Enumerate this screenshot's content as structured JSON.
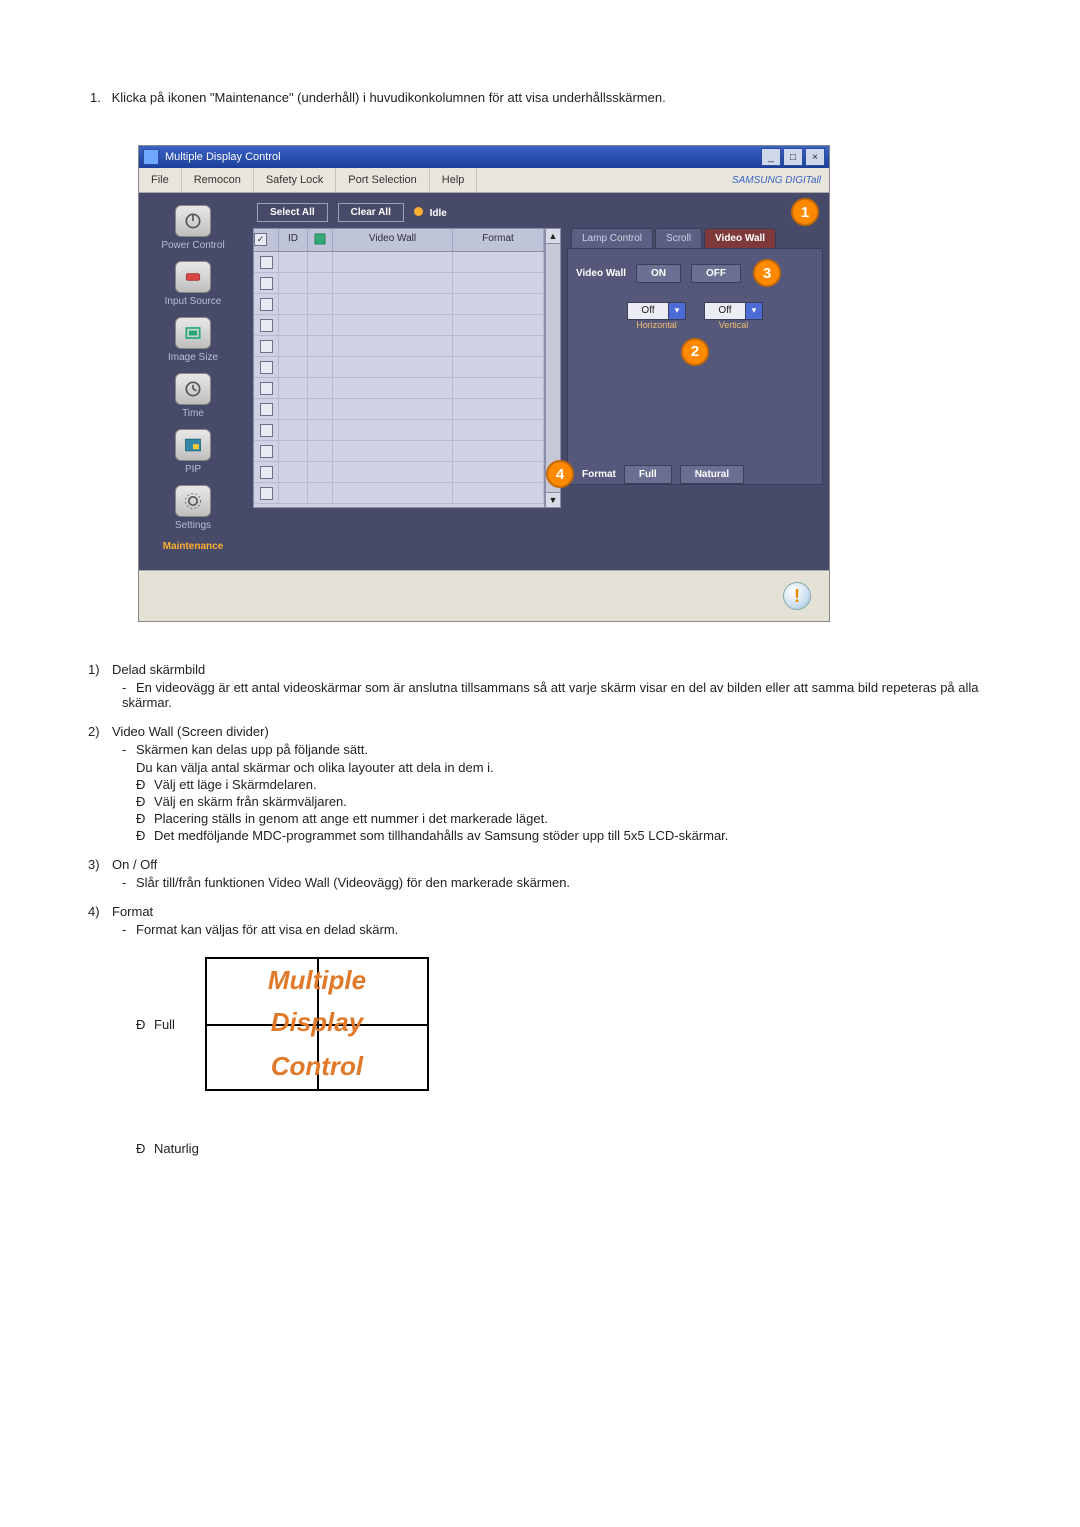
{
  "intro": {
    "num": "1.",
    "text": "Klicka på ikonen \"Maintenance\" (underhåll) i huvudikonkolumnen för att visa underhållsskärmen."
  },
  "window": {
    "title": "Multiple Display Control",
    "min": "_",
    "max": "□",
    "close": "×",
    "menu": [
      "File",
      "Remocon",
      "Safety Lock",
      "Port Selection",
      "Help"
    ],
    "brand": "SAMSUNG DIGITall"
  },
  "sidebar": [
    {
      "label": "Power Control"
    },
    {
      "label": "Input Source"
    },
    {
      "label": "Image Size"
    },
    {
      "label": "Time"
    },
    {
      "label": "PIP"
    },
    {
      "label": "Settings"
    },
    {
      "label": "Maintenance"
    }
  ],
  "toolbar": {
    "select_all": "Select All",
    "clear_all": "Clear All",
    "idle": "Idle"
  },
  "grid": {
    "h_id": "ID",
    "h_vw": "Video Wall",
    "h_fmt": "Format",
    "first_id": "ID",
    "row_count": 12
  },
  "rpanel": {
    "tabs": [
      "Lamp Control",
      "Scroll",
      "Video Wall"
    ],
    "vw_label": "Video Wall",
    "on": "ON",
    "off": "OFF",
    "dd_h": "Off",
    "dd_v": "Off",
    "lbl_h": "Horizontal",
    "lbl_v": "Vertical",
    "fmt_label": "Format",
    "full": "Full",
    "natural": "Natural"
  },
  "callouts": {
    "c1": "1",
    "c2": "2",
    "c3": "3",
    "c4": "4"
  },
  "body": {
    "s1_h": "Delad skärmbild",
    "s1_t": "En videovägg är ett antal videoskärmar som är anslutna tillsammans så att varje skärm visar en del av bilden eller att samma bild repeteras på alla skärmar.",
    "s2_h": "Video Wall (Screen divider)",
    "s2_t1": "Skärmen kan delas upp på följande sätt.",
    "s2_t2": "Du kan välja antal skärmar och olika layouter att dela in dem i.",
    "s2_b1": "Välj ett läge i Skärmdelaren.",
    "s2_b2": "Välj en skärm från skärmväljaren.",
    "s2_b3": "Placering ställs in genom att ange ett nummer i det markerade läget.",
    "s2_b4": "Det medföljande MDC-programmet som tillhandahålls av Samsung stöder upp till 5x5 LCD-skärmar.",
    "s3_h": "On / Off",
    "s3_t": "Slår till/från funktionen Video Wall (Videovägg) för den markerade skärmen.",
    "s4_h": "Format",
    "s4_t": "Format kan väljas för att visa en delad skärm.",
    "full": "Full",
    "natural": "Naturlig",
    "fig_w1": "Multiple",
    "fig_w2": "Display",
    "fig_w3": "Control",
    "bullet": "Ð",
    "dash": "-"
  }
}
